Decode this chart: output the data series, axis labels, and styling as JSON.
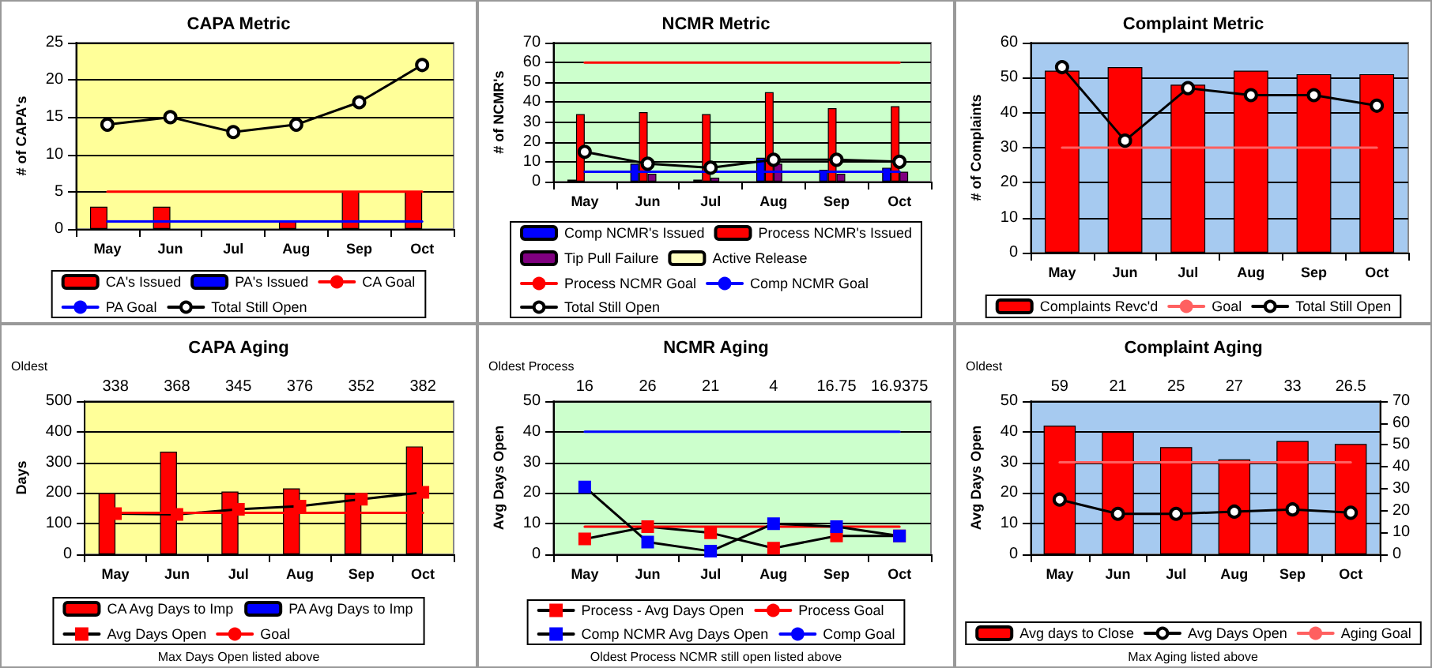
{
  "chart_data": [
    {
      "type": "bar",
      "title": "CAPA Metric",
      "ylabel": "# of CAPA's",
      "categories": [
        "May",
        "Jun",
        "Jul",
        "Aug",
        "Sep",
        "Oct"
      ],
      "ylim": [
        0,
        25
      ],
      "yticks": [
        0,
        5,
        10,
        15,
        20,
        25
      ],
      "grid": "y",
      "legend": "bottom",
      "series": [
        {
          "name": "CA's Issued",
          "color": "#ff0000",
          "values": [
            3,
            3,
            null,
            1,
            5,
            5
          ]
        },
        {
          "name": "PA's Issued",
          "color": "#0000ff",
          "values": [
            null,
            null,
            null,
            null,
            null,
            null
          ]
        },
        {
          "name": "CA Goal",
          "type": "line",
          "color": "#ff0000",
          "marker": "none",
          "values": [
            5,
            5,
            5,
            5,
            5,
            5
          ]
        },
        {
          "name": "PA Goal",
          "type": "line",
          "color": "#0000ff",
          "marker": "none",
          "values": [
            1,
            1,
            1,
            1,
            1,
            1
          ]
        },
        {
          "name": "Total Still Open",
          "type": "line",
          "color": "#000000",
          "marker": "circle",
          "values": [
            14,
            15,
            13,
            14,
            17,
            22
          ]
        }
      ]
    },
    {
      "type": "bar",
      "title": "NCMR Metric",
      "ylabel": "# of NCMR's",
      "categories": [
        "May",
        "Jun",
        "Jul",
        "Aug",
        "Sep",
        "Oct"
      ],
      "ylim": [
        0,
        70
      ],
      "yticks": [
        0,
        10,
        20,
        30,
        40,
        50,
        60,
        70
      ],
      "grid": "y",
      "legend": "bottom",
      "series": [
        {
          "name": "Comp NCMR's Issued",
          "color": "#0000ff",
          "values": [
            1,
            9,
            1,
            12,
            6,
            7
          ]
        },
        {
          "name": "Process NCMR's Issued",
          "color": "#ff0000",
          "values": [
            34,
            35,
            34,
            45,
            37,
            38
          ]
        },
        {
          "name": "Tip Pull Failure",
          "color": "#800080",
          "values": [
            null,
            4,
            2,
            9,
            4,
            5
          ]
        },
        {
          "name": "Active Release",
          "color": "#ffffc0",
          "values": [
            null,
            null,
            null,
            null,
            null,
            null
          ]
        },
        {
          "name": "Process NCMR Goal",
          "type": "line",
          "color": "#ff0000",
          "marker": "none",
          "values": [
            60,
            60,
            60,
            60,
            60,
            60
          ]
        },
        {
          "name": "Comp NCMR Goal",
          "type": "line",
          "color": "#0000ff",
          "marker": "none",
          "values": [
            5,
            5,
            5,
            5,
            5,
            5
          ]
        },
        {
          "name": "Total Still Open",
          "type": "line",
          "color": "#000000",
          "marker": "circle",
          "values": [
            15,
            9,
            7,
            11,
            11,
            10
          ]
        }
      ]
    },
    {
      "type": "bar",
      "title": "Complaint Metric",
      "ylabel": "# of Complaints",
      "categories": [
        "May",
        "Jun",
        "Jul",
        "Aug",
        "Sep",
        "Oct"
      ],
      "ylim": [
        0,
        60
      ],
      "yticks": [
        0,
        10,
        20,
        30,
        40,
        50,
        60
      ],
      "grid": "y",
      "legend": "bottom",
      "series": [
        {
          "name": "Complaints Revc'd",
          "color": "#ff0000",
          "values": [
            52,
            53,
            48,
            52,
            51,
            51
          ]
        },
        {
          "name": "Goal",
          "type": "line",
          "color": "#ff6060",
          "marker": "none",
          "values": [
            30,
            30,
            30,
            30,
            30,
            30
          ]
        },
        {
          "name": "Total Still Open",
          "type": "line",
          "color": "#000000",
          "marker": "circle",
          "values": [
            53,
            32,
            47,
            45,
            45,
            42
          ]
        }
      ]
    },
    {
      "type": "bar",
      "title": "CAPA Aging",
      "ylabel": "Days",
      "categories": [
        "May",
        "Jun",
        "Jul",
        "Aug",
        "Sep",
        "Oct"
      ],
      "ylim": [
        0,
        500
      ],
      "yticks": [
        0,
        100,
        200,
        300,
        400,
        500
      ],
      "grid": "y",
      "legend": "bottom",
      "series": [
        {
          "name": "CA Avg Days to Imp",
          "color": "#ff0000",
          "values": [
            200,
            335,
            205,
            215,
            197,
            352
          ]
        },
        {
          "name": "PA Avg Days to Imp",
          "color": "#0000ff",
          "values": [
            null,
            null,
            null,
            null,
            null,
            null
          ]
        },
        {
          "name": "Avg Days Open",
          "type": "line",
          "color": "#000000",
          "colors": [
            "#ff0000",
            "#ff0000",
            "#ff0000",
            "#ff0000",
            "#ff0000",
            "#ff0000"
          ],
          "marker": "square",
          "values": [
            133,
            130,
            147,
            157,
            180,
            202
          ]
        },
        {
          "name": "Goal",
          "type": "line",
          "color": "#ff0000",
          "marker": "none",
          "values": [
            135,
            135,
            135,
            135,
            135,
            135
          ]
        }
      ],
      "annotations": [
        "Oldest",
        "Max Days Open listed above",
        "338",
        "368",
        "345",
        "376",
        "352",
        "382"
      ]
    },
    {
      "type": "line",
      "title": "NCMR Aging",
      "ylabel": "Avg Days Open",
      "categories": [
        "May",
        "Jun",
        "Jul",
        "Aug",
        "Sep",
        "Oct"
      ],
      "ylim": [
        0,
        50
      ],
      "yticks": [
        0,
        10,
        20,
        30,
        40,
        50
      ],
      "grid": "y",
      "legend": "bottom",
      "series": [
        {
          "name": "Process - Avg Days Open",
          "color": "#000000",
          "colors": [
            "#ff0000",
            "#ff0000",
            "#ff0000",
            "#ff0000",
            "#ff0000",
            "#ff0000"
          ],
          "marker": "square",
          "values": [
            5,
            9,
            7,
            2,
            6,
            6
          ]
        },
        {
          "name": "Process Goal",
          "color": "#ff0000",
          "marker": "none",
          "values": [
            9,
            9,
            9,
            9,
            9,
            9
          ]
        },
        {
          "name": "Comp NCMR Avg Days Open",
          "color": "#000000",
          "colors": [
            "#0000ff",
            "#0000ff",
            "#0000ff",
            "#0000ff",
            "#0000ff",
            "#0000ff"
          ],
          "marker": "square",
          "values": [
            22,
            4,
            1,
            10,
            9,
            6
          ]
        },
        {
          "name": "Comp Goal",
          "color": "#0000ff",
          "marker": "none",
          "values": [
            40,
            40,
            40,
            40,
            40,
            40
          ]
        }
      ],
      "annotations": [
        "Oldest Process",
        "Oldest Process NCMR still open listed above",
        "16",
        "26",
        "21",
        "4",
        "16.75",
        "16.9375"
      ]
    },
    {
      "type": "bar",
      "title": "Complaint Aging",
      "ylabel": "Avg Days Open",
      "categories": [
        "May",
        "Jun",
        "Jul",
        "Aug",
        "Sep",
        "Oct"
      ],
      "ylim": [
        0,
        50
      ],
      "yticks": [
        0,
        10,
        20,
        30,
        40,
        50
      ],
      "y2lim": [
        0,
        70
      ],
      "y2ticks": [
        0,
        10,
        20,
        30,
        40,
        50,
        60,
        70
      ],
      "grid": "y",
      "legend": "bottom",
      "series": [
        {
          "name": "Avg days to Close",
          "color": "#ff0000",
          "values": [
            42,
            40,
            35,
            31,
            37,
            36
          ]
        },
        {
          "name": "Avg Days Open",
          "type": "line",
          "axis": "y2",
          "color": "#000000",
          "marker": "circle",
          "values": [
            25,
            18.5,
            18.5,
            19.5,
            20.5,
            19
          ]
        },
        {
          "name": "Aging Goal",
          "type": "line",
          "color": "#ff6060",
          "marker": "none",
          "values": [
            30,
            30,
            30,
            30,
            30,
            30
          ]
        }
      ],
      "annotations": [
        "Oldest",
        "Max Aging listed above",
        "59",
        "21",
        "25",
        "27",
        "33",
        "26.5"
      ]
    }
  ]
}
